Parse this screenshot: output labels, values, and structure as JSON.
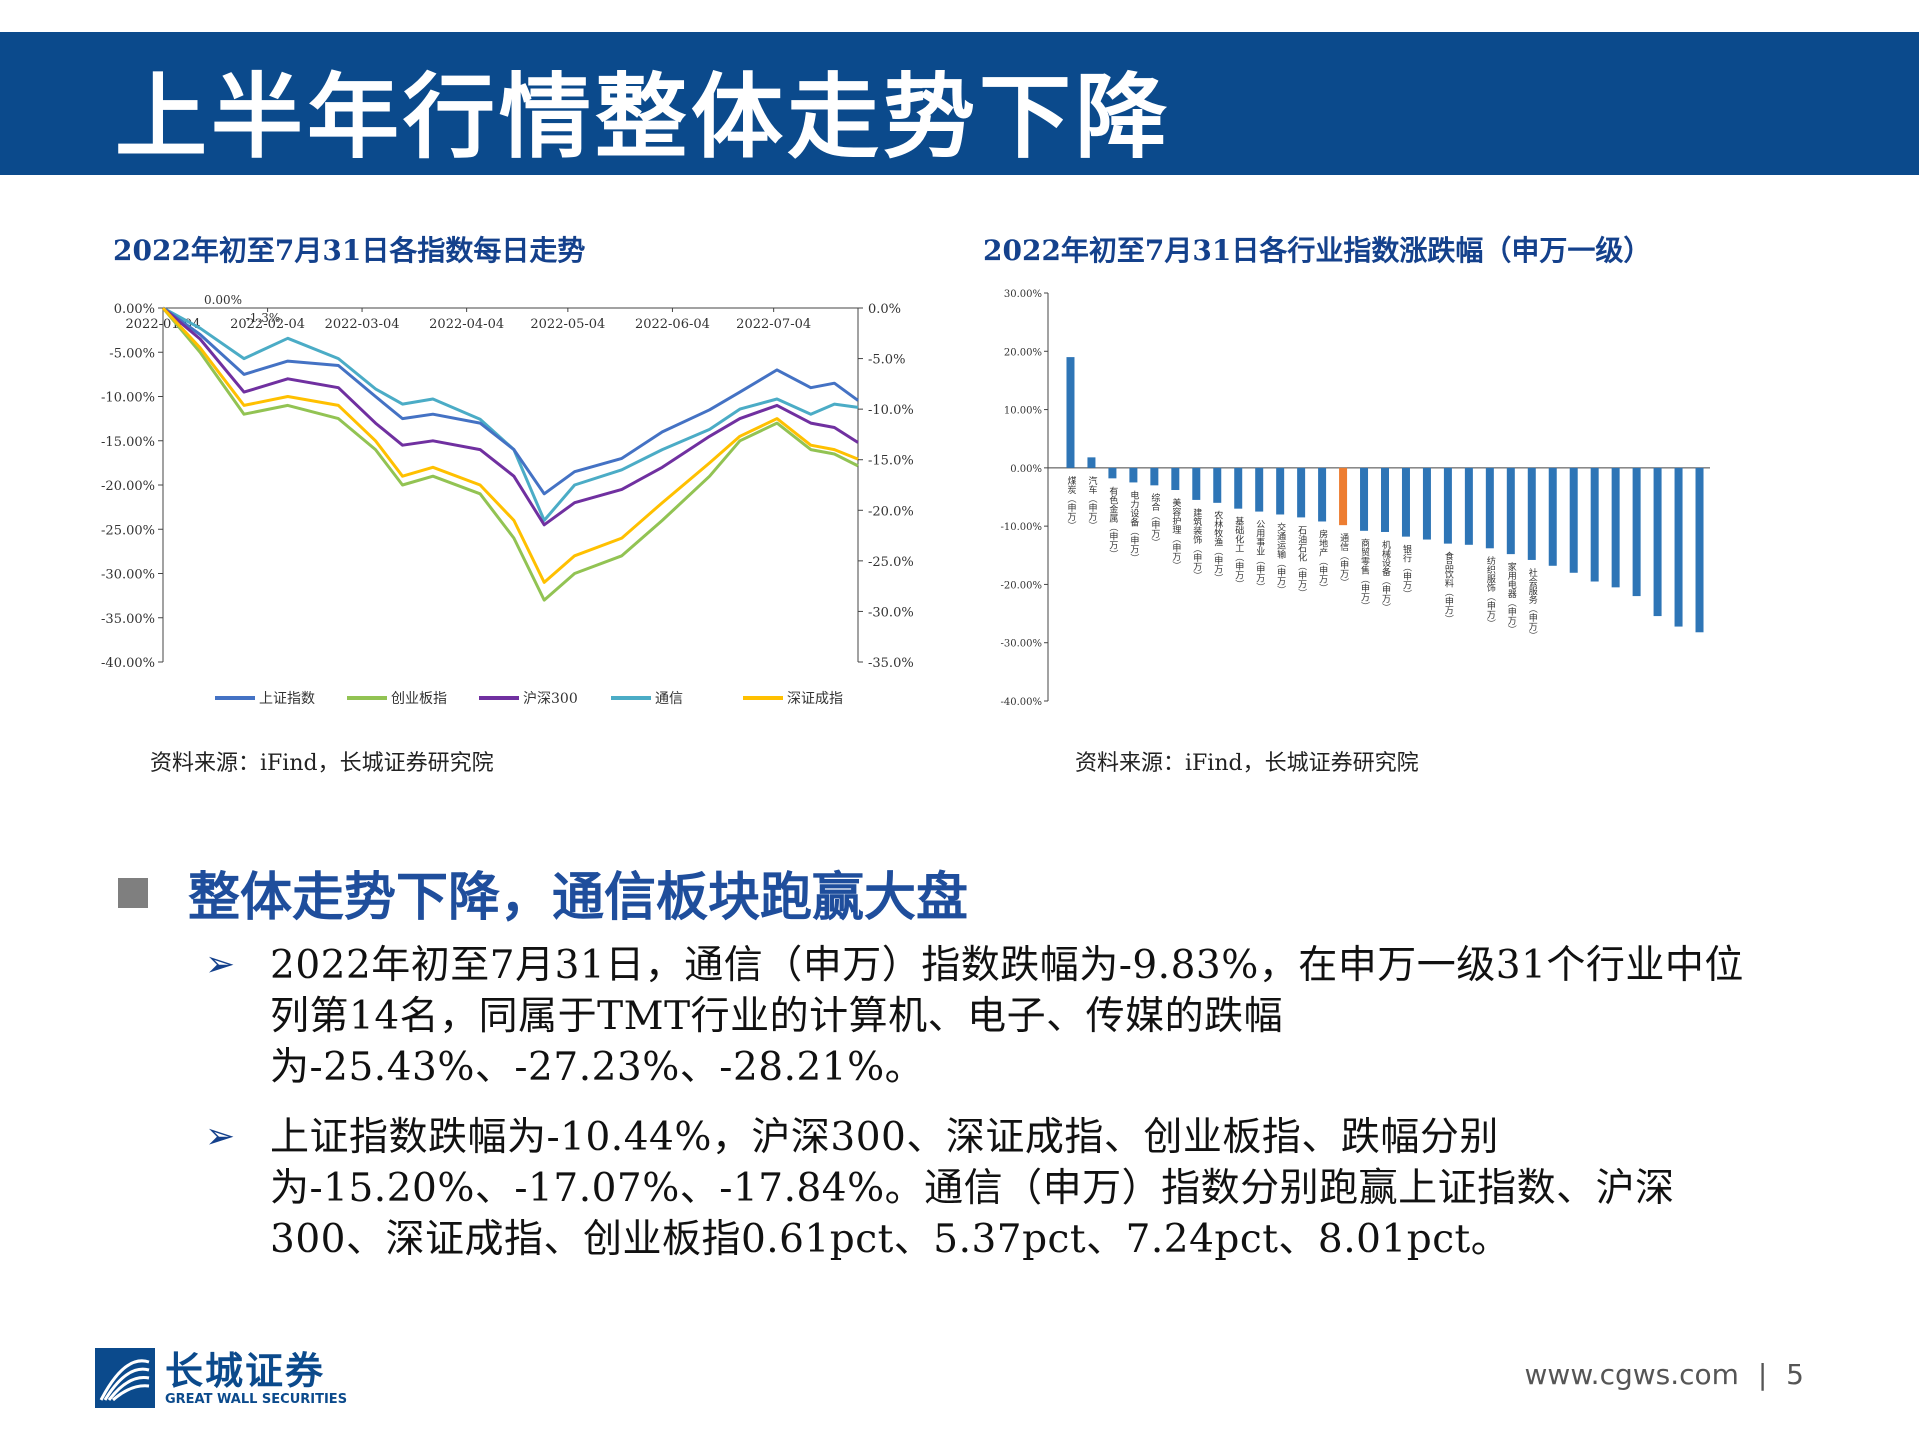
{
  "header": {
    "title": "上半年行情整体走势下降"
  },
  "left_chart": {
    "title": "2022年初至7月31日各指数每日走势",
    "source": "资料来源：iFind，长城证券研究院"
  },
  "right_chart": {
    "title": "2022年初至7月31日各行业指数涨跌幅（申万一级）",
    "source": "资料来源：iFind，长城证券研究院"
  },
  "chart_data": [
    {
      "type": "line",
      "title": "2022年初至7月31日各指数每日走势",
      "x_tick_labels": [
        "2022-01-04",
        "2022-02-04",
        "2022-03-04",
        "2022-04-04",
        "2022-05-04",
        "2022-06-04",
        "2022-07-04"
      ],
      "x_range": [
        "2022-01-04",
        "2022-07-29"
      ],
      "y_left_ticks": [
        "0.00%",
        "-5.00%",
        "-10.00%",
        "-15.00%",
        "-20.00%",
        "-25.00%",
        "-30.00%",
        "-35.00%",
        "-40.00%"
      ],
      "y_right_ticks": [
        "0.0%",
        "-5.0%",
        "-10.0%",
        "-15.0%",
        "-20.0%",
        "-25.0%",
        "-30.0%",
        "-35.0%"
      ],
      "y_left_range": [
        -40,
        0
      ],
      "y_right_range": [
        -35,
        0
      ],
      "series_axis_note": "通信 plotted on right axis",
      "top_annotations": [
        "0.00%",
        "-1.3%"
      ],
      "legend_position": "bottom",
      "series": [
        {
          "name": "上证指数",
          "color": "#4472c4",
          "axis": "left",
          "points": [
            [
              "2022-01-04",
              0
            ],
            [
              "2022-01-15",
              -3
            ],
            [
              "2022-01-28",
              -7.5
            ],
            [
              "2022-02-10",
              -6
            ],
            [
              "2022-02-25",
              -6.5
            ],
            [
              "2022-03-08",
              -10
            ],
            [
              "2022-03-16",
              -12.5
            ],
            [
              "2022-03-25",
              -12
            ],
            [
              "2022-04-08",
              -13
            ],
            [
              "2022-04-18",
              -16
            ],
            [
              "2022-04-27",
              -21
            ],
            [
              "2022-05-06",
              -18.5
            ],
            [
              "2022-05-20",
              -17
            ],
            [
              "2022-06-01",
              -14
            ],
            [
              "2022-06-15",
              -11.5
            ],
            [
              "2022-06-24",
              -9.5
            ],
            [
              "2022-07-05",
              -7
            ],
            [
              "2022-07-15",
              -9
            ],
            [
              "2022-07-22",
              -8.5
            ],
            [
              "2022-07-29",
              -10.44
            ]
          ]
        },
        {
          "name": "创业板指",
          "color": "#92c353",
          "axis": "left",
          "points": [
            [
              "2022-01-04",
              0
            ],
            [
              "2022-01-15",
              -5
            ],
            [
              "2022-01-28",
              -12
            ],
            [
              "2022-02-10",
              -11
            ],
            [
              "2022-02-25",
              -12.5
            ],
            [
              "2022-03-08",
              -16
            ],
            [
              "2022-03-16",
              -20
            ],
            [
              "2022-03-25",
              -19
            ],
            [
              "2022-04-08",
              -21
            ],
            [
              "2022-04-18",
              -26
            ],
            [
              "2022-04-27",
              -33
            ],
            [
              "2022-05-06",
              -30
            ],
            [
              "2022-05-20",
              -28
            ],
            [
              "2022-06-01",
              -24
            ],
            [
              "2022-06-15",
              -19
            ],
            [
              "2022-06-24",
              -15
            ],
            [
              "2022-07-05",
              -13
            ],
            [
              "2022-07-15",
              -16
            ],
            [
              "2022-07-22",
              -16.5
            ],
            [
              "2022-07-29",
              -17.84
            ]
          ]
        },
        {
          "name": "沪深300",
          "color": "#7030a0",
          "axis": "left",
          "points": [
            [
              "2022-01-04",
              0
            ],
            [
              "2022-01-15",
              -3.5
            ],
            [
              "2022-01-28",
              -9.5
            ],
            [
              "2022-02-10",
              -8
            ],
            [
              "2022-02-25",
              -9
            ],
            [
              "2022-03-08",
              -13
            ],
            [
              "2022-03-16",
              -15.5
            ],
            [
              "2022-03-25",
              -15
            ],
            [
              "2022-04-08",
              -16
            ],
            [
              "2022-04-18",
              -19
            ],
            [
              "2022-04-27",
              -24.5
            ],
            [
              "2022-05-06",
              -22
            ],
            [
              "2022-05-20",
              -20.5
            ],
            [
              "2022-06-01",
              -18
            ],
            [
              "2022-06-15",
              -14.5
            ],
            [
              "2022-06-24",
              -12.5
            ],
            [
              "2022-07-05",
              -11
            ],
            [
              "2022-07-15",
              -13
            ],
            [
              "2022-07-22",
              -13.5
            ],
            [
              "2022-07-29",
              -15.2
            ]
          ]
        },
        {
          "name": "通信",
          "color": "#4bacc6",
          "axis": "right",
          "points": [
            [
              "2022-01-04",
              0
            ],
            [
              "2022-01-15",
              -2
            ],
            [
              "2022-01-28",
              -5
            ],
            [
              "2022-02-10",
              -3
            ],
            [
              "2022-02-25",
              -5
            ],
            [
              "2022-03-08",
              -8
            ],
            [
              "2022-03-16",
              -9.5
            ],
            [
              "2022-03-25",
              -9
            ],
            [
              "2022-04-08",
              -11
            ],
            [
              "2022-04-18",
              -14
            ],
            [
              "2022-04-27",
              -21
            ],
            [
              "2022-05-06",
              -17.5
            ],
            [
              "2022-05-20",
              -16
            ],
            [
              "2022-06-01",
              -14
            ],
            [
              "2022-06-15",
              -12
            ],
            [
              "2022-06-24",
              -10
            ],
            [
              "2022-07-05",
              -9
            ],
            [
              "2022-07-15",
              -10.5
            ],
            [
              "2022-07-22",
              -9.5
            ],
            [
              "2022-07-29",
              -9.83
            ]
          ]
        },
        {
          "name": "深证成指",
          "color": "#ffc000",
          "axis": "left",
          "points": [
            [
              "2022-01-04",
              0
            ],
            [
              "2022-01-15",
              -4.5
            ],
            [
              "2022-01-28",
              -11
            ],
            [
              "2022-02-10",
              -10
            ],
            [
              "2022-02-25",
              -11
            ],
            [
              "2022-03-08",
              -15
            ],
            [
              "2022-03-16",
              -19
            ],
            [
              "2022-03-25",
              -18
            ],
            [
              "2022-04-08",
              -20
            ],
            [
              "2022-04-18",
              -24
            ],
            [
              "2022-04-27",
              -31
            ],
            [
              "2022-05-06",
              -28
            ],
            [
              "2022-05-20",
              -26
            ],
            [
              "2022-06-01",
              -22
            ],
            [
              "2022-06-15",
              -17.5
            ],
            [
              "2022-06-24",
              -14.5
            ],
            [
              "2022-07-05",
              -12.5
            ],
            [
              "2022-07-15",
              -15.5
            ],
            [
              "2022-07-22",
              -16
            ],
            [
              "2022-07-29",
              -17.07
            ]
          ]
        }
      ]
    },
    {
      "type": "bar",
      "title": "2022年初至7月31日各行业指数涨跌幅（申万一级）",
      "y_ticks": [
        "30.00%",
        "20.00%",
        "10.00%",
        "0.00%",
        "-10.00%",
        "-20.00%",
        "-30.00%",
        "-40.00%"
      ],
      "ylim": [
        -40,
        30
      ],
      "highlight_color": "#ed7d31",
      "bar_color": "#2e75b6",
      "categories": [
        "煤炭（申万）",
        "汽车（申万）",
        "有色金属（申万）",
        "电力设备（申万）",
        "综合（申万）",
        "美容护理（申万）",
        "建筑装饰（申万）",
        "农林牧渔（申万）",
        "基础化工（申万）",
        "公用事业（申万）",
        "交通运输（申万）",
        "石油石化（申万）",
        "房地产（申万）",
        "通信（申万）",
        "商贸零售（申万）",
        "机械设备（申万）",
        "银行（申万）",
        "",
        "食品饮料（申万）",
        "",
        "纺织服饰（申万）",
        "家用电器（申万）",
        "社会服务（申万）",
        "",
        "",
        "",
        "",
        "",
        "",
        "",
        ""
      ],
      "values": [
        19.0,
        1.8,
        -1.8,
        -2.5,
        -3.0,
        -3.8,
        -5.5,
        -6.0,
        -7.0,
        -7.5,
        -8.0,
        -8.5,
        -9.2,
        -9.83,
        -10.8,
        -11.0,
        -11.8,
        -12.3,
        -13.0,
        -13.2,
        -13.8,
        -14.8,
        -15.8,
        -16.8,
        -18.0,
        -19.5,
        -20.5,
        -22.0,
        -25.43,
        -27.23,
        -28.21
      ],
      "highlight_index": 13
    }
  ],
  "section": {
    "heading": "整体走势下降，通信板块跑赢大盘",
    "bullets": [
      "2022年初至7月31日，通信（申万）指数跌幅为-9.83%，在申万一级31个行业中位列第14名，同属于TMT行业的计算机、电子、传媒的跌幅为-25.43%、-27.23%、-28.21%。",
      "上证指数跌幅为-10.44%，沪深300、深证成指、创业板指、跌幅分别为-15.20%、-17.07%、-17.84%。通信（申万）指数分别跑赢上证指数、沪深300、深证成指、创业板指0.61pct、5.37pct、7.24pct、8.01pct。"
    ],
    "bullet_icon": "arrow-right-icon"
  },
  "footer": {
    "logo_cn": "长城证券",
    "logo_en": "GREAT WALL SECURITIES",
    "url": "www.cgws.com",
    "separator": "|",
    "page": "5"
  }
}
